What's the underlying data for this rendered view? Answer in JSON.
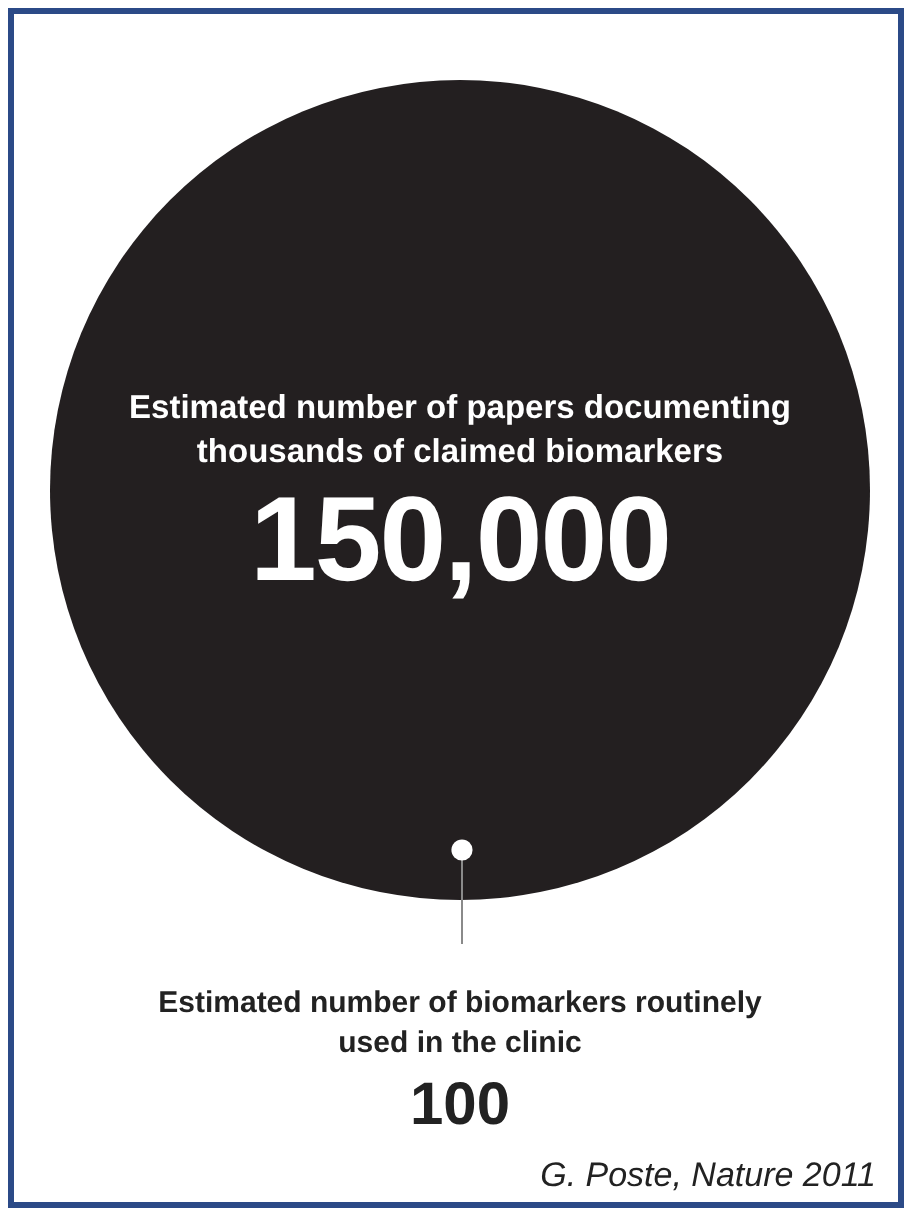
{
  "chart_data": {
    "type": "other",
    "categories": [
      "Estimated number of papers documenting thousands of claimed biomarkers",
      "Estimated number of biomarkers routinely used in the clinic"
    ],
    "values": [
      150000,
      100
    ],
    "colors": [
      "#231f20",
      "#ffffff"
    ],
    "value_labels": [
      "150,000",
      "100"
    ],
    "annotations": [
      "G. Poste, Nature 2011"
    ]
  }
}
